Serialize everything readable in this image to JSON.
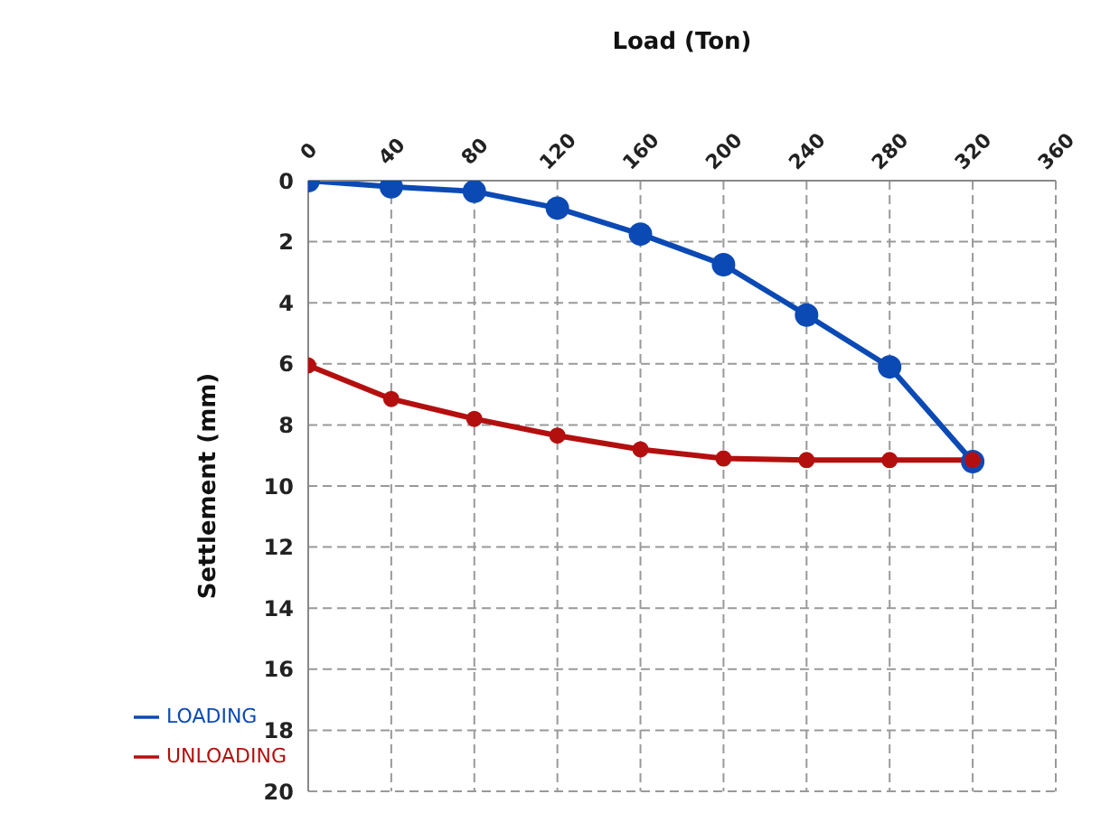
{
  "chart_data": {
    "type": "line",
    "xlabel": "Load (Ton)",
    "ylabel": "Settlement (mm)",
    "x": [
      0,
      40,
      80,
      120,
      160,
      200,
      240,
      280,
      320
    ],
    "series": [
      {
        "name": "LOADING",
        "color": "#0b4ab4",
        "values": [
          0,
          0.2,
          0.35,
          0.9,
          1.75,
          2.75,
          4.4,
          6.1,
          9.2
        ]
      },
      {
        "name": "UNLOADING",
        "color": "#b40f0f",
        "values": [
          6.05,
          7.15,
          7.8,
          8.35,
          8.8,
          9.1,
          9.15,
          9.15,
          9.15
        ]
      }
    ],
    "xlim": [
      0,
      360
    ],
    "xticks": [
      0,
      40,
      80,
      120,
      160,
      200,
      240,
      280,
      320,
      360
    ],
    "ylim": [
      20,
      0
    ],
    "yticks": [
      0,
      2,
      4,
      6,
      8,
      10,
      12,
      14,
      16,
      18,
      20
    ],
    "grid": true,
    "legend": "bottom left",
    "marker": "circle",
    "line_style": "solid"
  }
}
